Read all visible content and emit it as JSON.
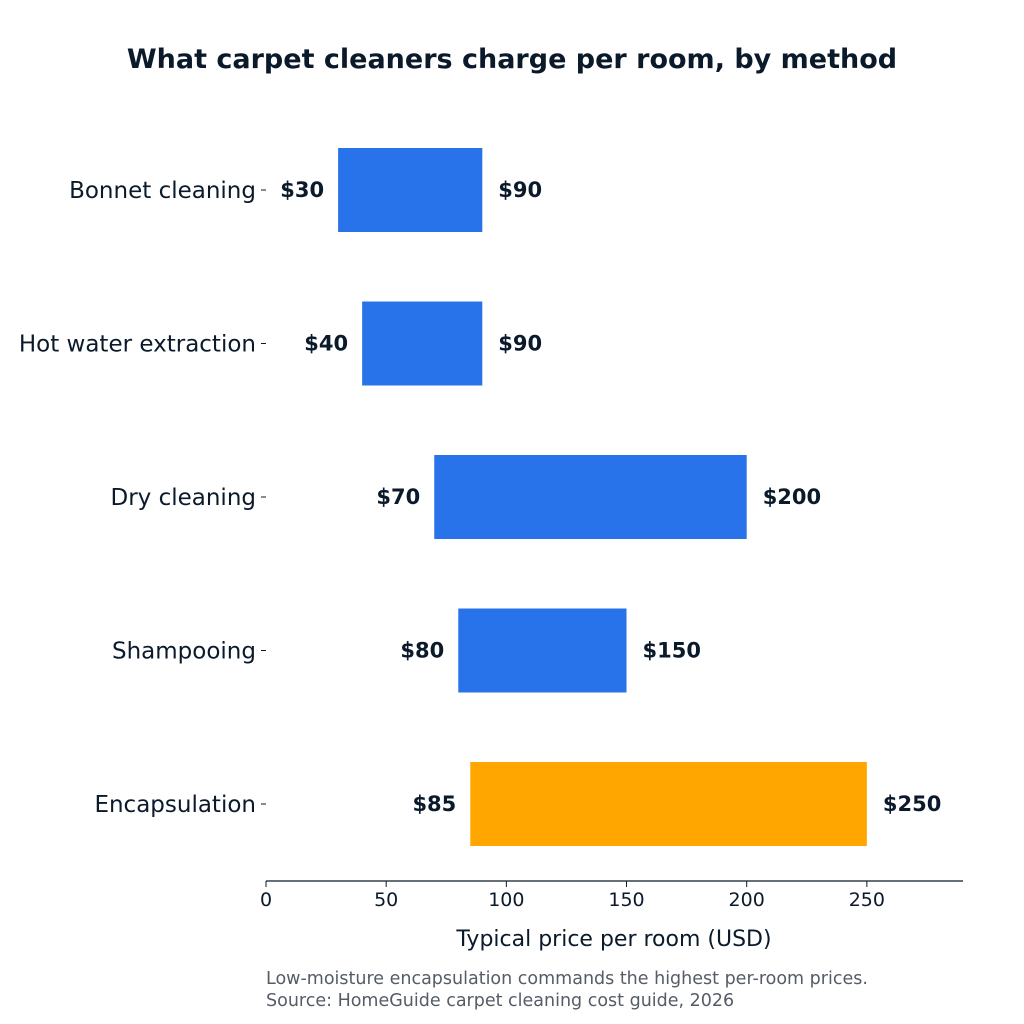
{
  "chart_data": {
    "type": "bar",
    "orientation": "horizontal",
    "range_bars": true,
    "title": "What carpet cleaners charge per room, by method",
    "xlabel": "Typical price per room (USD)",
    "ylabel": "",
    "xlim": [
      0,
      290
    ],
    "xticks": [
      0,
      50,
      100,
      150,
      200,
      250
    ],
    "grid": false,
    "categories": [
      "Bonnet cleaning",
      "Hot water extraction",
      "Dry cleaning",
      "Shampooing",
      "Encapsulation"
    ],
    "low": [
      30,
      40,
      70,
      80,
      85
    ],
    "high": [
      90,
      90,
      200,
      150,
      250
    ],
    "low_labels": [
      "$30",
      "$40",
      "$70",
      "$80",
      "$85"
    ],
    "high_labels": [
      "$90",
      "$90",
      "$200",
      "$150",
      "$250"
    ],
    "highlight_index": 4,
    "colors": {
      "default": "#2873ea",
      "highlight": "#ffa600",
      "text": "#0b1a2b",
      "footnote": "#555c66"
    }
  },
  "footnote": {
    "line1": "Low-moisture encapsulation commands the highest per-room prices.",
    "line2": "Source: HomeGuide carpet cleaning cost guide, 2026"
  }
}
